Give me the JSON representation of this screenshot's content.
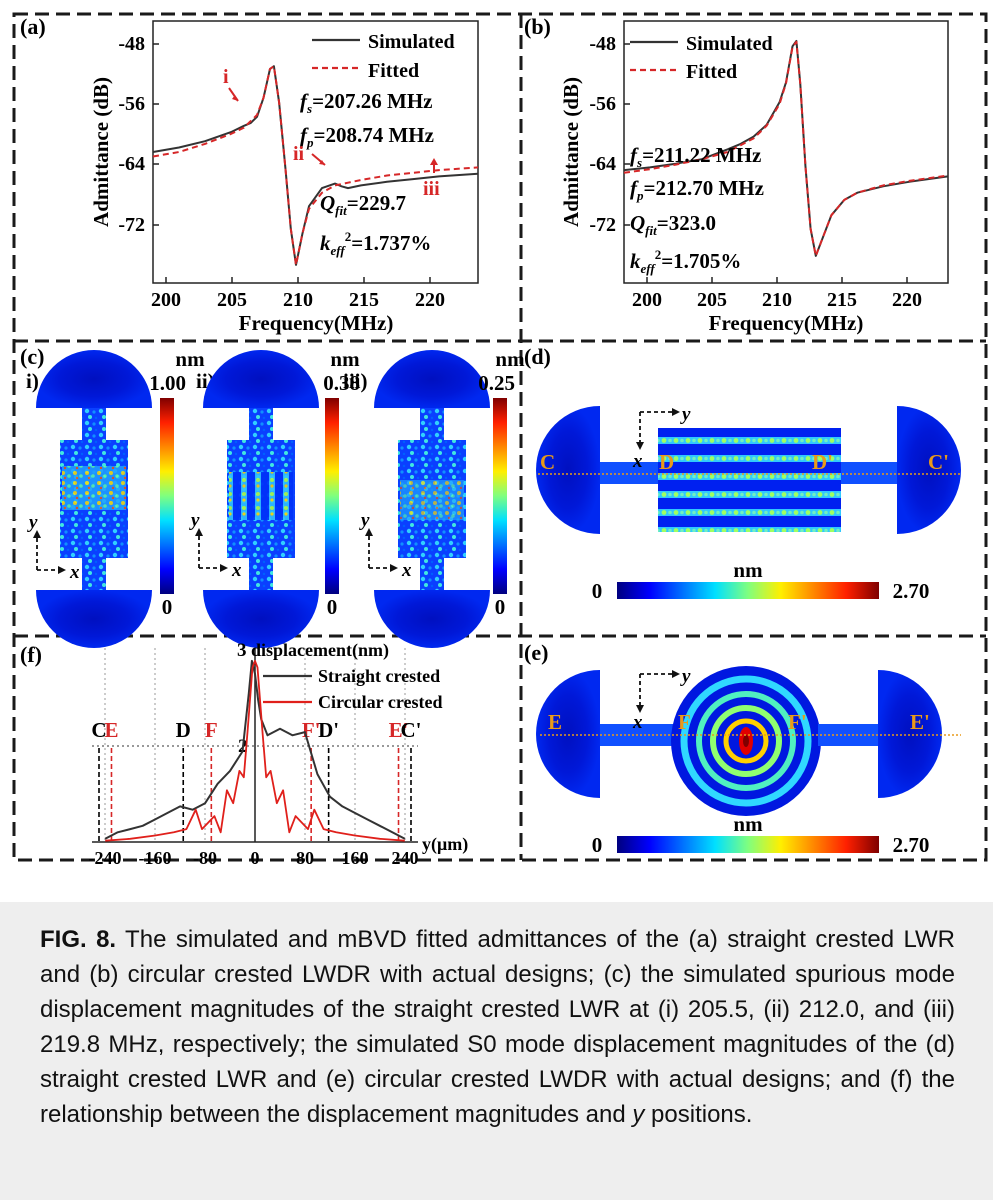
{
  "panels": {
    "a": {
      "label": "(a)",
      "chart_data": {
        "type": "line",
        "xlabel": "Frequency(MHz)",
        "ylabel": "Admittance (dB)",
        "xlim": [
          198,
          223
        ],
        "ylim": [
          -75,
          -46
        ],
        "xticks": [
          "200",
          "205",
          "210",
          "215",
          "220"
        ],
        "yticks": [
          "-48",
          "-56",
          "-64",
          "-72"
        ],
        "legend": [
          "Simulated",
          "Fitted"
        ],
        "legend_position": "top-right",
        "series": [
          {
            "name": "Simulated",
            "color": "#333333",
            "x": [
              198,
              200,
              202,
              204,
              205,
              205.5,
              206,
              206.5,
              207,
              207.3,
              207.7,
              208.2,
              208.6,
              209,
              209.5,
              210,
              211,
              212,
              212.5,
              213,
              214,
              216,
              218,
              220,
              221,
              223
            ],
            "y": [
              -60.5,
              -60.0,
              -59.3,
              -58.3,
              -57.6,
              -57.3,
              -56.6,
              -54.5,
              -51.3,
              -51.0,
              -55.0,
              -62.5,
              -69.0,
              -73.0,
              -69.5,
              -66.5,
              -64.5,
              -64.0,
              -64.3,
              -64.5,
              -64.2,
              -63.8,
              -63.5,
              -63.2,
              -63.1,
              -62.9
            ]
          },
          {
            "name": "Fitted",
            "color": "#d62728",
            "x": [
              198,
              200,
              202,
              204,
              205,
              206,
              206.5,
              207,
              207.3,
              207.7,
              208.2,
              208.6,
              209,
              209.5,
              210,
              211,
              212,
              213,
              214,
              216,
              218,
              220,
              223
            ],
            "y": [
              -61.0,
              -60.5,
              -59.6,
              -58.5,
              -57.8,
              -56.4,
              -54.5,
              -51.3,
              -51.0,
              -55.0,
              -62.5,
              -69.0,
              -73.0,
              -69.5,
              -66.8,
              -65.0,
              -64.2,
              -63.9,
              -63.6,
              -63.1,
              -62.8,
              -62.5,
              -62.2
            ]
          }
        ],
        "annotations": [
          {
            "text": "f",
            "sub": "s",
            "rest": "=207.26 MHz"
          },
          {
            "text": "f",
            "sub": "p",
            "rest": "=208.74 MHz"
          },
          {
            "text": "Q",
            "sub": "fit",
            "rest": "=229.7"
          },
          {
            "text": "k",
            "sub": "eff",
            "sup": "2",
            "rest": "=1.737%"
          }
        ],
        "markers": [
          {
            "text": "i",
            "x": 205.5,
            "y": -57.3
          },
          {
            "text": "ii",
            "x": 212.0,
            "y": -64.0
          },
          {
            "text": "iii",
            "x": 219.8,
            "y": -63.2
          }
        ]
      }
    },
    "b": {
      "label": "(b)",
      "chart_data": {
        "type": "line",
        "xlabel": "Frequency(MHz)",
        "ylabel": "Admittance (dB)",
        "xlim": [
          198,
          223
        ],
        "ylim": [
          -75,
          -46
        ],
        "xticks": [
          "200",
          "205",
          "210",
          "215",
          "220"
        ],
        "yticks": [
          "-48",
          "-56",
          "-64",
          "-72"
        ],
        "legend": [
          "Simulated",
          "Fitted"
        ],
        "legend_position": "top-right",
        "series": [
          {
            "name": "Simulated",
            "color": "#333333",
            "x": [
              198,
              200,
              202,
              204,
              206,
              207,
              208,
              209,
              210,
              210.5,
              211,
              211.3,
              211.6,
              212,
              212.4,
              212.8,
              213.2,
              214,
              215,
              216,
              218,
              220,
              223
            ],
            "y": [
              -62.5,
              -62.2,
              -61.8,
              -61.3,
              -60.2,
              -59.6,
              -58.8,
              -57.5,
              -55.0,
              -52.8,
              -48.8,
              -48.2,
              -53.0,
              -62.0,
              -69.0,
              -72.0,
              -70.5,
              -67.5,
              -65.8,
              -65.0,
              -64.3,
              -63.8,
              -63.2
            ]
          },
          {
            "name": "Fitted",
            "color": "#d62728",
            "x": [
              198,
              200,
              202,
              204,
              206,
              208,
              209,
              210,
              210.5,
              211,
              211.3,
              211.6,
              212,
              212.4,
              212.8,
              213.2,
              214,
              215,
              216,
              218,
              220,
              223
            ],
            "y": [
              -62.8,
              -62.4,
              -61.9,
              -61.3,
              -60.5,
              -59.0,
              -57.6,
              -55.2,
              -52.9,
              -48.9,
              -48.3,
              -53.0,
              -62.0,
              -69.0,
              -72.0,
              -70.5,
              -67.5,
              -65.8,
              -65.0,
              -64.2,
              -63.7,
              -63.1
            ]
          }
        ],
        "annotations": [
          {
            "text": "f",
            "sub": "s",
            "rest": "=211.22 MHz"
          },
          {
            "text": "f",
            "sub": "p",
            "rest": "=212.70 MHz"
          },
          {
            "text": "Q",
            "sub": "fit",
            "rest": "=323.0"
          },
          {
            "text": "k",
            "sub": "eff",
            "sup": "2",
            "rest": "=1.705%"
          }
        ]
      }
    },
    "c": {
      "label": "(c)",
      "subpanels": [
        {
          "label": "i)",
          "unit": "nm",
          "max": "1.00",
          "min": "0"
        },
        {
          "label": "ii)",
          "unit": "nm",
          "max": "0.38",
          "min": "0"
        },
        {
          "label": "iii)",
          "unit": "nm",
          "max": "0.25",
          "min": "0"
        }
      ],
      "axis_x": "x",
      "axis_y": "y"
    },
    "d": {
      "label": "(d)",
      "points": [
        "C",
        "D",
        "D'",
        "C'"
      ],
      "axis_x": "x",
      "axis_y": "y",
      "colorbar": {
        "unit": "nm",
        "min": "0",
        "max": "2.70"
      }
    },
    "e": {
      "label": "(e)",
      "points": [
        "E",
        "F",
        "F'",
        "E'"
      ],
      "axis_x": "x",
      "axis_y": "y",
      "colorbar": {
        "unit": "nm",
        "min": "0",
        "max": "2.70"
      }
    },
    "f": {
      "label": "(f)",
      "chart_data": {
        "type": "line",
        "ylabel": "displacement(nm)",
        "xlabel": "y(μm)",
        "xlim": [
          -250,
          250
        ],
        "ylim": [
          0,
          3
        ],
        "xticks": [
          "-240",
          "-160",
          "-80",
          "0",
          "80",
          "160",
          "240"
        ],
        "yticks": [
          "2",
          "3"
        ],
        "legend": [
          "Straight crested",
          "Circular crested"
        ],
        "legend_position": "top-right",
        "series": [
          {
            "name": "Straight crested",
            "color": "#333333",
            "x": [
              -240,
              -220,
              -200,
              -180,
              -160,
              -140,
              -120,
              -100,
              -80,
              -60,
              -40,
              -20,
              -10,
              -5,
              0,
              5,
              10,
              20,
              40,
              60,
              80,
              100,
              120,
              140,
              160,
              180,
              200,
              220,
              240
            ],
            "y": [
              0.05,
              0.15,
              0.2,
              0.25,
              0.35,
              0.45,
              0.55,
              0.5,
              0.6,
              0.9,
              1.1,
              1.4,
              2.3,
              2.8,
              2.6,
              2.2,
              1.9,
              1.65,
              1.75,
              1.65,
              1.7,
              1.05,
              0.7,
              0.55,
              0.45,
              0.35,
              0.25,
              0.15,
              0.05
            ]
          },
          {
            "name": "Circular crested",
            "color": "#e0201b",
            "x": [
              -240,
              -200,
              -160,
              -130,
              -110,
              -95,
              -85,
              -75,
              -65,
              -55,
              -45,
              -35,
              -25,
              -18,
              -12,
              -8,
              -4,
              0,
              4,
              8,
              12,
              18,
              25,
              35,
              45,
              55,
              65,
              75,
              85,
              95,
              110,
              130,
              160,
              200,
              240
            ],
            "y": [
              0.02,
              0.05,
              0.1,
              0.15,
              0.2,
              0.5,
              0.2,
              0.3,
              0.4,
              0.15,
              0.8,
              0.6,
              1.1,
              1.0,
              1.7,
              2.2,
              2.7,
              2.8,
              2.7,
              2.2,
              1.7,
              1.0,
              1.1,
              0.6,
              0.8,
              0.15,
              0.4,
              0.3,
              0.2,
              0.5,
              0.2,
              0.15,
              0.1,
              0.05,
              0.02
            ]
          }
        ],
        "markers_top": [
          {
            "text": "C",
            "x": -250,
            "color": "#000000"
          },
          {
            "text": "E",
            "x": -230,
            "color": "#d62728"
          },
          {
            "text": "D",
            "x": -115,
            "color": "#000000"
          },
          {
            "text": "F",
            "x": -70,
            "color": "#d62728"
          },
          {
            "text": "F'",
            "x": 90,
            "color": "#d62728"
          },
          {
            "text": "D'",
            "x": 118,
            "color": "#000000"
          },
          {
            "text": "E'",
            "x": 230,
            "color": "#d62728"
          },
          {
            "text": "C'",
            "x": 250,
            "color": "#000000"
          }
        ]
      }
    }
  },
  "caption": {
    "lead": "FIG. 8.",
    "text_1": " The simulated and mBVD fitted admittances of the (a) straight crested LWR and (b) circular crested LWDR with actual designs; (c) the simulated spurious mode displacement magnitudes of the straight crested LWR at (i) 205.5, (ii) 212.0, and (iii) 219.8 MHz, respectively; the simulated S0 mode displacement magnitudes of the (d) straight crested LWR and (e) circular crested LWDR with actual designs; and (f) the relationship between the displacement magnitudes and ",
    "italic_y": "y",
    "text_2": " positions."
  },
  "colors": {
    "jet": [
      "#00007f",
      "#0000ff",
      "#00a0ff",
      "#20ffdf",
      "#9fff60",
      "#ffef00",
      "#ff7000",
      "#ef0000",
      "#7f0000"
    ],
    "frame": "#1a1a1a",
    "accent_red": "#d62728",
    "point_label": "#e89a1a"
  }
}
